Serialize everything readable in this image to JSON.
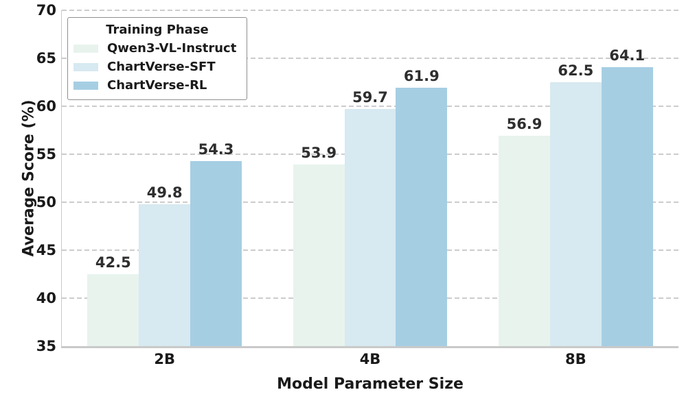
{
  "chart_data": {
    "type": "bar",
    "title": "",
    "xlabel": "Model Parameter Size",
    "ylabel": "Average Score (%)",
    "categories": [
      "2B",
      "4B",
      "8B"
    ],
    "series": [
      {
        "name": "Qwen3-VL-Instruct",
        "color": "#e8f3ee",
        "values": [
          42.5,
          53.9,
          56.9
        ]
      },
      {
        "name": "ChartVerse-SFT",
        "color": "#d7e9f1",
        "values": [
          49.8,
          59.7,
          62.5
        ]
      },
      {
        "name": "ChartVerse-RL",
        "color": "#a6cee3",
        "values": [
          54.3,
          61.9,
          64.1
        ]
      }
    ],
    "ylim": [
      35,
      70
    ],
    "yticks": [
      35,
      40,
      45,
      50,
      55,
      60,
      65,
      70
    ],
    "grid": "horizontal-dashed",
    "value_labels": true,
    "legend": {
      "title": "Training Phase",
      "position": "upper-left"
    }
  },
  "style_colors": {
    "background": "#ffffff",
    "grid": "#cccccc",
    "spine": "#c9c9c9",
    "text": "#1a1a1a",
    "value_label": "#2e2e2e",
    "legend_border": "#8f8f8f"
  }
}
